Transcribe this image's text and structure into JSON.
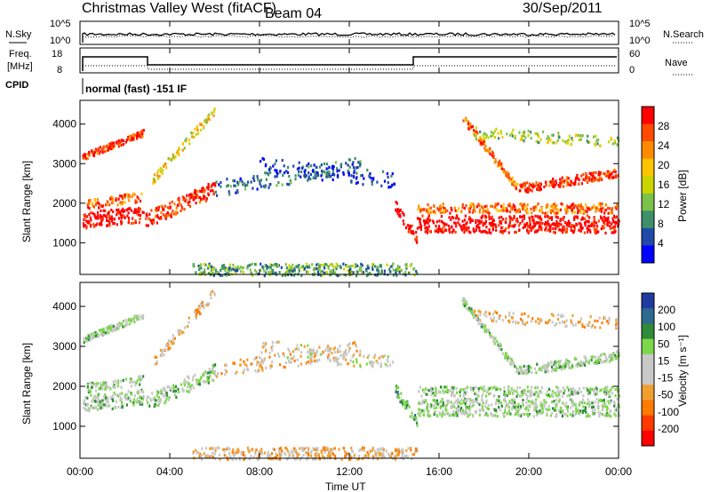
{
  "header": {
    "station": "Christmas Valley West (fitACF)",
    "beam": "Beam 04",
    "date": "30/Sep/2011"
  },
  "panels": {
    "nsky": {
      "left_label": "N.Sky",
      "right_label": "N.Search",
      "left_ticks": [
        "10^5",
        "10^0"
      ],
      "right_ticks": [
        "10^5",
        "10^0"
      ]
    },
    "freq": {
      "left_label_1": "Freq.",
      "left_label_2": "[MHz]",
      "right_label": "Nave",
      "left_ticks": [
        "18",
        "8"
      ],
      "right_ticks": [
        "60",
        "0"
      ]
    },
    "cpid": {
      "label": "CPID",
      "text": "normal (fast) -151 IF"
    }
  },
  "colors": {
    "power": [
      "#ff0000",
      "#ff4a00",
      "#ff8a00",
      "#ffc400",
      "#c9d400",
      "#7cc24a",
      "#3e8f6a",
      "#1f4aa8",
      "#0000ff"
    ],
    "velocity": [
      "#1f3aa0",
      "#2e6a8f",
      "#2f8a3a",
      "#7cd84a",
      "#c8c8c8",
      "#c8c8c8",
      "#f0a030",
      "#ff7a00",
      "#ff3a00",
      "#ff0000"
    ]
  },
  "chart_data": [
    {
      "type": "heatmap",
      "name": "power",
      "ylabel": "Slant Range [km]",
      "yticks": [
        1000,
        2000,
        3000,
        4000
      ],
      "ylim": [
        200,
        4600
      ],
      "colorbar_label": "Power [dB]",
      "colorbar_ticks": [
        28,
        24,
        20,
        16,
        12,
        8,
        4
      ]
    },
    {
      "type": "heatmap",
      "name": "velocity",
      "ylabel": "Slant Range [km]",
      "yticks": [
        1000,
        2000,
        3000,
        4000
      ],
      "ylim": [
        200,
        4600
      ],
      "colorbar_label": "Velocity [m s⁻¹]",
      "colorbar_ticks": [
        200,
        100,
        50,
        15,
        -15,
        -50,
        -100,
        -200
      ]
    }
  ],
  "xaxis": {
    "label": "Time UT",
    "ticks": [
      "00:00",
      "04:00",
      "08:00",
      "12:00",
      "16:00",
      "20:00",
      "00:00"
    ]
  }
}
